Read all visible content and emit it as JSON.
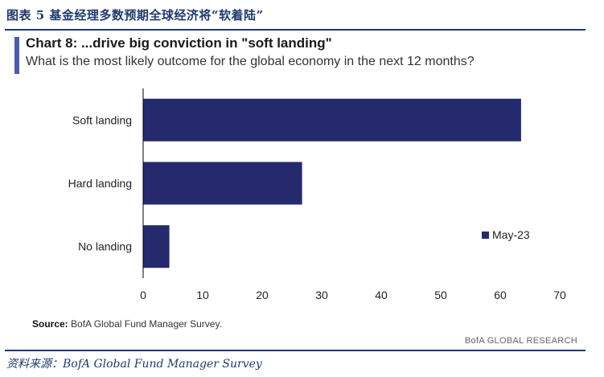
{
  "figure_caption": "图表 5   基金经理多数预期全球经济将“软着陆”",
  "chart_data": {
    "type": "bar",
    "orientation": "horizontal",
    "title": "Chart 8: ...drive big conviction in \"soft landing\"",
    "subtitle": "What is the most likely outcome for the global economy in the next 12 months?",
    "categories": [
      "Soft landing",
      "Hard landing",
      "No landing"
    ],
    "series": [
      {
        "name": "May-23",
        "values": [
          63.5,
          26.7,
          4.4
        ]
      }
    ],
    "xlim": [
      0,
      70
    ],
    "xticks": [
      0,
      10,
      20,
      30,
      40,
      50,
      60,
      70
    ],
    "xlabel": "",
    "ylabel": "",
    "grid": false,
    "legend_position": "right",
    "colors": {
      "bar": "#252a6e",
      "axis": "#000000",
      "tick_text": "#222222"
    }
  },
  "source_label": "Source:",
  "source_text": "BofA Global Fund Manager Survey.",
  "brand": "BofA GLOBAL RESEARCH",
  "doc_source": "资料来源：BofA Global Fund Manager Survey"
}
